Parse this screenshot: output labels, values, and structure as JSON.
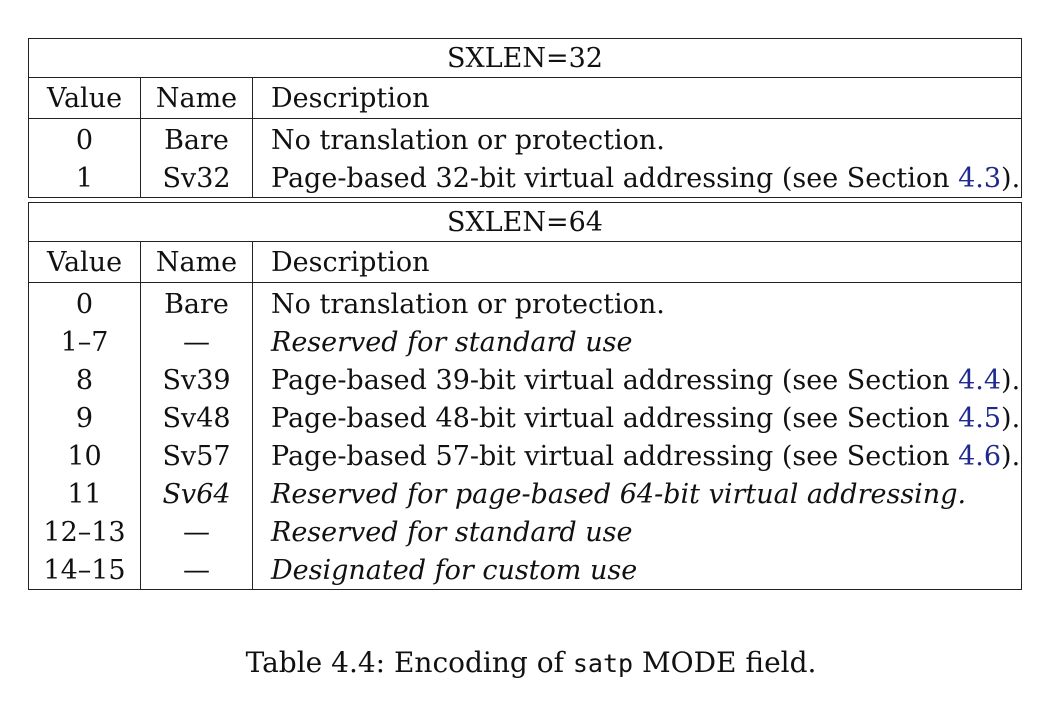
{
  "tables": [
    {
      "title": "SXLEN=32",
      "headers": {
        "value": "Value",
        "name": "Name",
        "description": "Description"
      },
      "rows": [
        {
          "value": "0",
          "name": "Bare",
          "description": "No translation or protection.",
          "ref": "",
          "suffix": "",
          "italic": false,
          "name_italic": false
        },
        {
          "value": "1",
          "name": "Sv32",
          "description": "Page-based 32-bit virtual addressing (see Section ",
          "ref": "4.3",
          "suffix": ").",
          "italic": false,
          "name_italic": false
        }
      ]
    },
    {
      "title": "SXLEN=64",
      "headers": {
        "value": "Value",
        "name": "Name",
        "description": "Description"
      },
      "rows": [
        {
          "value": "0",
          "name": "Bare",
          "description": "No translation or protection.",
          "ref": "",
          "suffix": "",
          "italic": false,
          "name_italic": false
        },
        {
          "value": "1–7",
          "name": "—",
          "description": "Reserved for standard use",
          "ref": "",
          "suffix": "",
          "italic": true,
          "name_italic": false
        },
        {
          "value": "8",
          "name": "Sv39",
          "description": "Page-based 39-bit virtual addressing (see Section ",
          "ref": "4.4",
          "suffix": ").",
          "italic": false,
          "name_italic": false
        },
        {
          "value": "9",
          "name": "Sv48",
          "description": "Page-based 48-bit virtual addressing (see Section ",
          "ref": "4.5",
          "suffix": ").",
          "italic": false,
          "name_italic": false
        },
        {
          "value": "10",
          "name": "Sv57",
          "description": "Page-based 57-bit virtual addressing (see Section ",
          "ref": "4.6",
          "suffix": ").",
          "italic": false,
          "name_italic": false
        },
        {
          "value": "11",
          "name": "Sv64",
          "description": "Reserved for page-based 64-bit virtual addressing.",
          "ref": "",
          "suffix": "",
          "italic": true,
          "name_italic": true
        },
        {
          "value": "12–13",
          "name": "—",
          "description": "Reserved for standard use",
          "ref": "",
          "suffix": "",
          "italic": true,
          "name_italic": false
        },
        {
          "value": "14–15",
          "name": "—",
          "description": "Designated for custom use",
          "ref": "",
          "suffix": "",
          "italic": true,
          "name_italic": false
        }
      ]
    }
  ],
  "caption": {
    "prefix": "Table 4.4: Encoding of ",
    "code": "satp",
    "suffix": " MODE field."
  },
  "colors": {
    "text": "#111111",
    "link": "#1f2a8c",
    "rule": "#222222"
  }
}
